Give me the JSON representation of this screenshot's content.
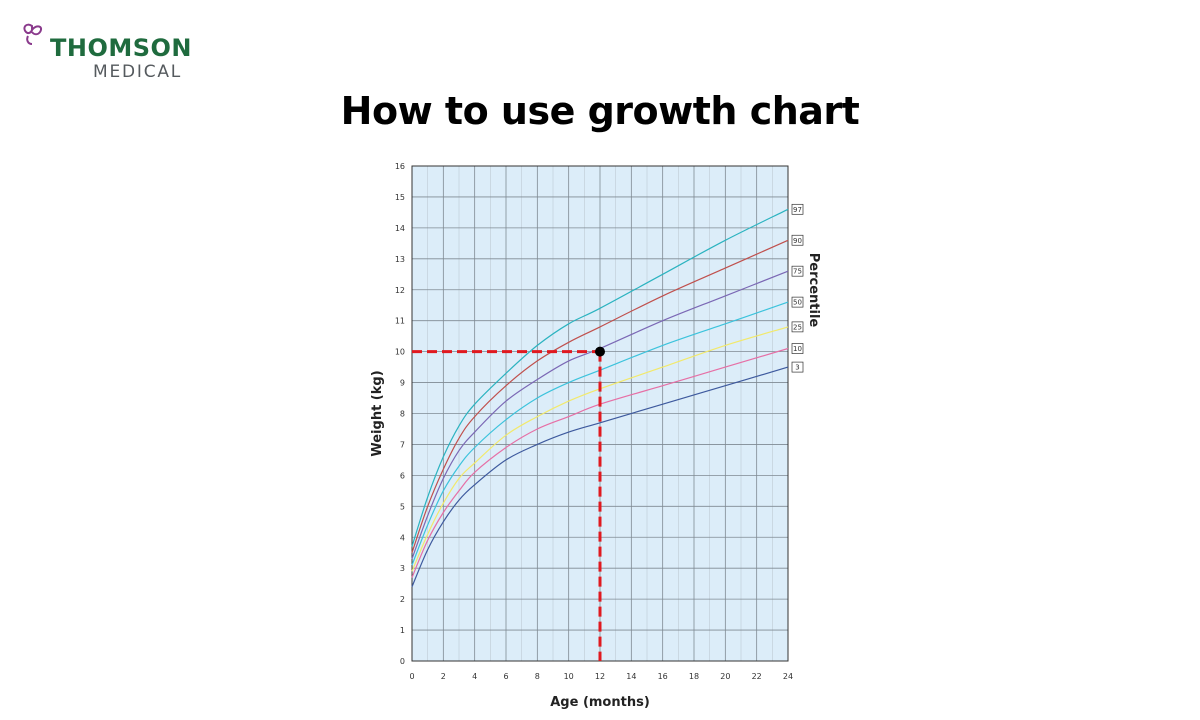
{
  "brand": {
    "name_line1": "THOMSON",
    "name_line2": "MEDICAL",
    "logo_icon": "butterfly-icon",
    "color_primary": "#1f6b3e",
    "color_secondary": "#555a5e",
    "color_icon": "#8a3a8c"
  },
  "page": {
    "title": "How to use growth chart"
  },
  "chart_data": {
    "type": "line",
    "xlabel": "Age (months)",
    "ylabel": "Weight (kg)",
    "legend_title": "Percentile",
    "legend_placement": "right",
    "xlim": [
      0,
      24
    ],
    "ylim": [
      0,
      16
    ],
    "x_ticks": [
      0,
      2,
      4,
      6,
      8,
      10,
      12,
      14,
      16,
      18,
      20,
      22,
      24
    ],
    "y_ticks": [
      0,
      1,
      2,
      3,
      4,
      5,
      6,
      7,
      8,
      9,
      10,
      11,
      12,
      13,
      14,
      15,
      16
    ],
    "grid": true,
    "background_color": "#dcedf9",
    "x": [
      0,
      1,
      2,
      3,
      4,
      6,
      8,
      10,
      12,
      16,
      20,
      24
    ],
    "series": [
      {
        "name": "97",
        "color": "#2bb3c0",
        "values": [
          3.7,
          5.3,
          6.6,
          7.6,
          8.3,
          9.3,
          10.2,
          10.9,
          11.4,
          12.5,
          13.6,
          14.6
        ]
      },
      {
        "name": "90",
        "color": "#c0504d",
        "values": [
          3.5,
          5.0,
          6.2,
          7.2,
          7.9,
          8.9,
          9.7,
          10.3,
          10.8,
          11.8,
          12.7,
          13.6
        ]
      },
      {
        "name": "75",
        "color": "#7b68b5",
        "values": [
          3.3,
          4.7,
          5.9,
          6.8,
          7.4,
          8.4,
          9.1,
          9.7,
          10.1,
          11.0,
          11.8,
          12.6
        ]
      },
      {
        "name": "50",
        "color": "#3cc3dc",
        "values": [
          3.1,
          4.4,
          5.5,
          6.3,
          6.9,
          7.8,
          8.5,
          9.0,
          9.4,
          10.2,
          10.9,
          11.6
        ]
      },
      {
        "name": "25",
        "color": "#f2e96b",
        "values": [
          2.9,
          4.1,
          5.1,
          5.9,
          6.4,
          7.3,
          7.9,
          8.4,
          8.8,
          9.5,
          10.2,
          10.8
        ]
      },
      {
        "name": "10",
        "color": "#e66fa5",
        "values": [
          2.7,
          3.9,
          4.8,
          5.5,
          6.1,
          6.9,
          7.5,
          7.9,
          8.3,
          8.9,
          9.5,
          10.1
        ]
      },
      {
        "name": "3",
        "color": "#3e5a9e",
        "values": [
          2.4,
          3.6,
          4.5,
          5.2,
          5.7,
          6.5,
          7.0,
          7.4,
          7.7,
          8.3,
          8.9,
          9.5
        ]
      }
    ],
    "annotation": {
      "point": {
        "x": 12,
        "y": 10
      },
      "line_color": "#e0191f",
      "marker_color": "#000000",
      "style": "dashed guide lines from axes to the point"
    }
  }
}
